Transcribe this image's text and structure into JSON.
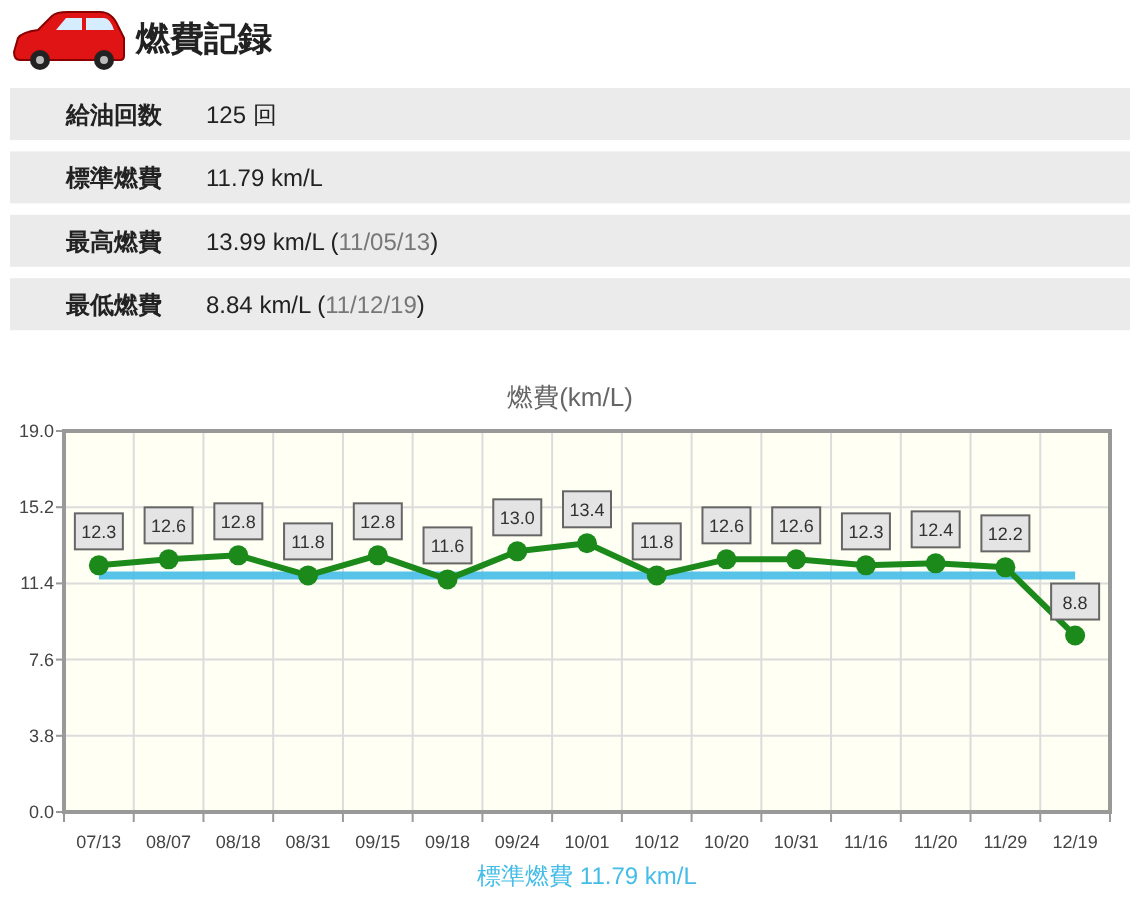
{
  "chart_data": [
    {
      "type": "other",
      "title": "燃費記録",
      "annotations": [
        "給油回数",
        "125 回",
        "標準燃費",
        "11.79 km/L",
        "最高燃費",
        "13.99 km/L (11/05/13)",
        "最低燃費",
        "8.84 km/L (11/12/19)"
      ]
    },
    {
      "type": "line",
      "title": "燃費(km/L)",
      "categories": [
        "07/13",
        "08/07",
        "08/18",
        "08/31",
        "09/15",
        "09/18",
        "09/24",
        "10/01",
        "10/12",
        "10/20",
        "10/31",
        "11/16",
        "11/20",
        "11/29",
        "12/19"
      ],
      "values": [
        12.3,
        12.6,
        12.8,
        11.8,
        12.8,
        11.6,
        13.0,
        13.4,
        11.8,
        12.6,
        12.6,
        12.3,
        12.4,
        12.2,
        8.8
      ],
      "value_labels": [
        "12.3",
        "12.6",
        "12.8",
        "11.8",
        "12.8",
        "11.6",
        "13.0",
        "13.4",
        "11.8",
        "12.6",
        "12.6",
        "12.3",
        "12.4",
        "12.2",
        "8.8"
      ],
      "color": "#1b8a1b",
      "marker": "circle",
      "ylim": [
        0,
        19
      ],
      "yticks": [
        {
          "value": 0,
          "label": "0.0"
        },
        3.8,
        7.6,
        11.4,
        15.2,
        {
          "value": 19,
          "label": "19.0"
        }
      ],
      "grid": true,
      "ref_lines": [
        {
          "axis": "y",
          "value": 11.79,
          "label": "標準燃費 11.79 km/L",
          "color": "#45bde8"
        }
      ]
    }
  ]
}
